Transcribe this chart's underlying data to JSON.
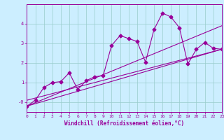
{
  "xlabel": "Windchill (Refroidissement éolien,°C)",
  "bg_color": "#cceeff",
  "grid_color": "#99cccc",
  "line_color": "#990099",
  "xlim": [
    0,
    23
  ],
  "ylim": [
    -0.5,
    5.0
  ],
  "yticks": [
    0,
    1,
    2,
    3,
    4
  ],
  "ytick_labels": [
    "-0",
    "1",
    "2",
    "3",
    "4"
  ],
  "xticks": [
    0,
    1,
    2,
    3,
    4,
    5,
    6,
    7,
    8,
    9,
    10,
    11,
    12,
    13,
    14,
    15,
    16,
    17,
    18,
    19,
    20,
    21,
    22,
    23
  ],
  "series1_x": [
    0,
    1,
    2,
    3,
    4,
    5,
    6,
    7,
    8,
    9,
    10,
    11,
    12,
    13,
    14,
    15,
    16,
    17,
    18,
    19,
    20,
    21,
    22,
    23
  ],
  "series1_y": [
    -0.2,
    0.1,
    0.75,
    1.0,
    1.05,
    1.5,
    0.65,
    1.1,
    1.3,
    1.35,
    2.9,
    3.4,
    3.25,
    3.1,
    2.05,
    3.7,
    4.55,
    4.35,
    3.8,
    1.95,
    2.7,
    3.05,
    2.75,
    2.7
  ],
  "series2_x": [
    0,
    23
  ],
  "series2_y": [
    -0.2,
    2.7
  ],
  "series3_x": [
    0,
    23
  ],
  "series3_y": [
    -0.2,
    3.9
  ],
  "series4_x": [
    0,
    23
  ],
  "series4_y": [
    0.1,
    2.7
  ],
  "tick_fontsize": 4.5,
  "xlabel_fontsize": 5.5,
  "linewidth": 0.8,
  "markersize": 2.5
}
